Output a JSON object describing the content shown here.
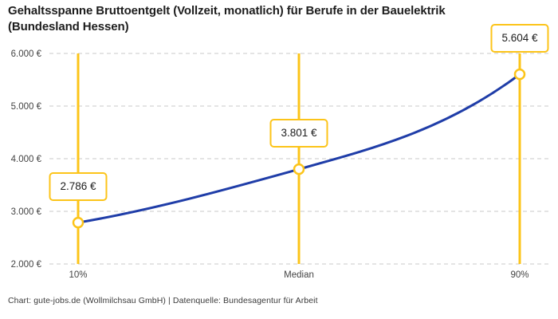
{
  "footer": {
    "text": "Chart: gute-jobs.de (Wollmilchsau GmbH) | Datenquelle: Bundesagentur für Arbeit"
  },
  "chart_data": {
    "type": "line",
    "title": "Gehaltsspanne Bruttoentgelt (Vollzeit, monatlich) für Berufe in der Bauelektrik (Bundesland Hessen)",
    "categories": [
      "10%",
      "Median",
      "90%"
    ],
    "values": [
      2786,
      3801,
      5604
    ],
    "value_labels": [
      "2.786 €",
      "3.801 €",
      "5.604 €"
    ],
    "xlabel": "",
    "ylabel": "",
    "ylim": [
      2000,
      6000
    ],
    "y_ticks": [
      2000,
      3000,
      4000,
      5000,
      6000
    ],
    "y_tick_labels": [
      "2.000 €",
      "3.000 €",
      "4.000 €",
      "5.000 €",
      "6.000 €"
    ],
    "grid": "horizontal-dashed",
    "legend": "none",
    "colors": {
      "line": "#1f3da8",
      "vline": "#fcc419",
      "marker_stroke": "#fcc419",
      "marker_fill": "#ffffff",
      "grid": "#c9c9c9",
      "axis_text": "#444444",
      "title_text": "#1d1d1d",
      "badge_border": "#fcc419",
      "background": "#ffffff"
    }
  }
}
